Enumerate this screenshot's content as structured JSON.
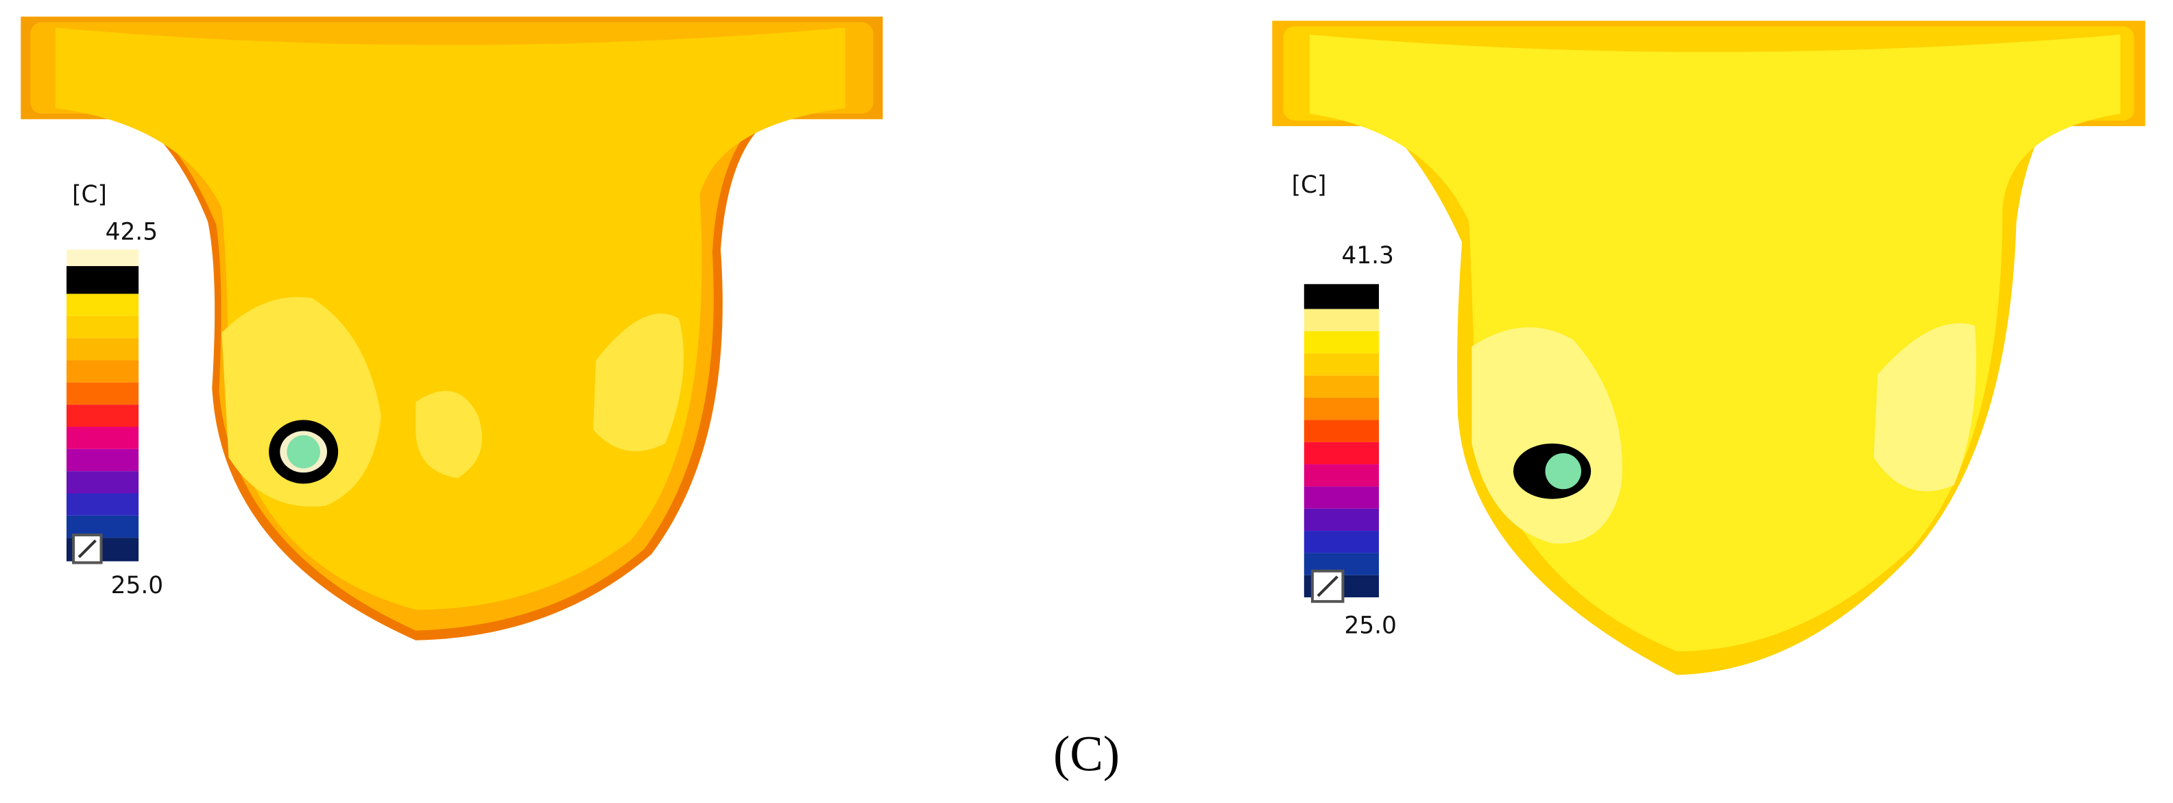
{
  "panels": [
    {
      "unit": "[C]",
      "max": "42.5",
      "min": "25.0"
    },
    {
      "unit": "[C]",
      "max": "41.3",
      "min": "25.0"
    }
  ],
  "caption": "(C)"
}
